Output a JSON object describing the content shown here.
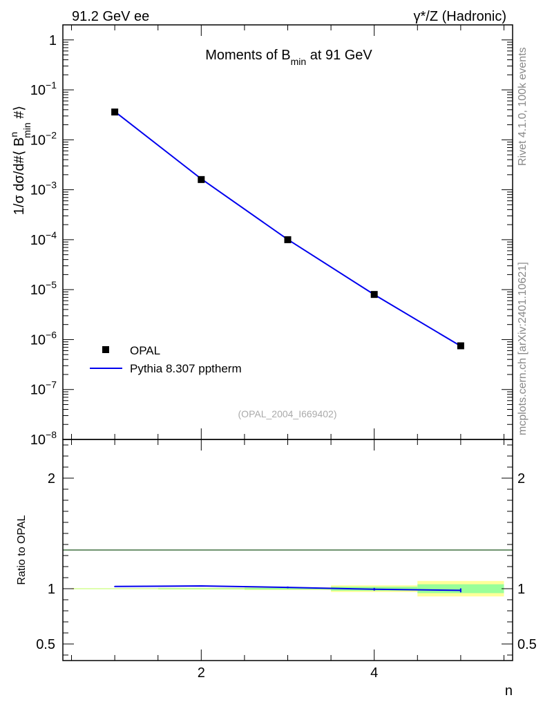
{
  "header": {
    "left": "91.2 GeV ee",
    "right": "γ*/Z (Hadronic)"
  },
  "side_labels": {
    "rivet": "Rivet 4.1.0,  100k events",
    "mcplots": "mcplots.cern.ch [arXiv:2401.10621]"
  },
  "colors": {
    "data": "#000000",
    "mc": "#0000ee",
    "band_outer": "#ffff99",
    "band_inner": "#99ff99",
    "unit_line": "#000000"
  },
  "chart_data": [
    {
      "type": "scatter",
      "role": "main",
      "title": "Moments of B_min at 91 GeV",
      "title_parts": {
        "pre": "Moments of B",
        "sub": "min",
        "post": " at 91 GeV"
      },
      "ylabel": "1/σ  dσ/d#⟨ B^n_min #⟩",
      "ylabel_parts": {
        "a": "1/σ  dσ/d#⟨ B",
        "sup": "n",
        "sub": "min",
        "b": " #⟩"
      },
      "yscale": "log",
      "xlim": [
        0.4,
        5.6
      ],
      "ylim": [
        1e-08,
        2
      ],
      "yticks": [
        {
          "v": 1,
          "label": "1",
          "base": "1",
          "exp": ""
        },
        {
          "v": 0.1,
          "label": "10^-1",
          "base": "10",
          "exp": "−1"
        },
        {
          "v": 0.01,
          "label": "10^-2",
          "base": "10",
          "exp": "−2"
        },
        {
          "v": 0.001,
          "label": "10^-3",
          "base": "10",
          "exp": "−3"
        },
        {
          "v": 0.0001,
          "label": "10^-4",
          "base": "10",
          "exp": "−4"
        },
        {
          "v": 1e-05,
          "label": "10^-5",
          "base": "10",
          "exp": "−5"
        },
        {
          "v": 1e-06,
          "label": "10^-6",
          "base": "10",
          "exp": "−6"
        },
        {
          "v": 1e-07,
          "label": "10^-7",
          "base": "10",
          "exp": "−7"
        },
        {
          "v": 1e-08,
          "label": "10^-8",
          "base": "10",
          "exp": "−8"
        }
      ],
      "series": [
        {
          "name": "OPAL",
          "kind": "markers",
          "x": [
            1,
            2,
            3,
            4,
            5
          ],
          "y": [
            0.036,
            0.0016,
            0.0001,
            8e-06,
            7.5e-07
          ]
        },
        {
          "name": "Pythia 8.307 pptherm",
          "kind": "line",
          "x": [
            1,
            2,
            3,
            4,
            5
          ],
          "y": [
            0.0368,
            0.00165,
            0.000101,
            7.95e-06,
            7.4e-07
          ]
        }
      ],
      "legend_position": "lower-left",
      "annotation": "(OPAL_2004_I669402)"
    },
    {
      "type": "line",
      "role": "ratio",
      "ylabel": "Ratio to OPAL",
      "xlabel": "n",
      "xlim": [
        0.4,
        5.6
      ],
      "ylim": [
        0.35,
        2.35
      ],
      "xticks": [
        2,
        4
      ],
      "yticks": [
        0.5,
        1,
        2
      ],
      "x": [
        1,
        2,
        3,
        4,
        5
      ],
      "data_band_outer": [
        0.005,
        0.008,
        0.012,
        0.03,
        0.07
      ],
      "data_band_inner": [
        0.002,
        0.004,
        0.007,
        0.018,
        0.04
      ],
      "mc_ratio": [
        1.02,
        1.025,
        1.012,
        0.995,
        0.985
      ],
      "mc_err": [
        0.004,
        0.006,
        0.008,
        0.012,
        0.018
      ]
    }
  ]
}
